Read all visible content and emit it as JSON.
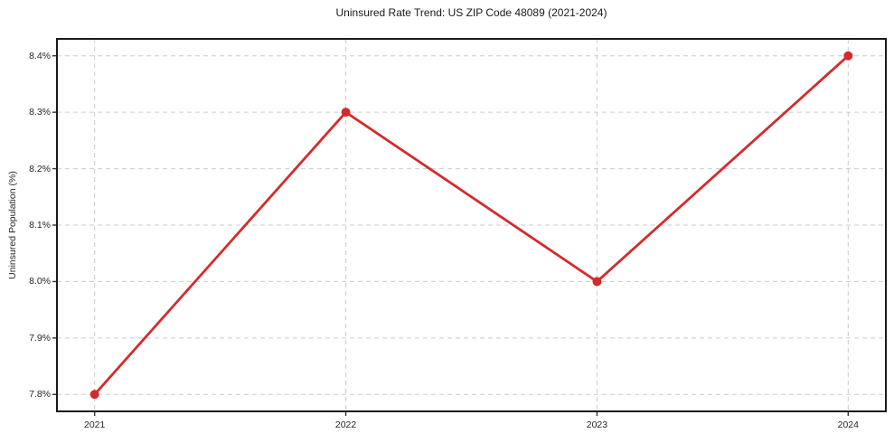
{
  "figure": {
    "background": "#ffffff"
  },
  "chart_data": {
    "type": "line",
    "title": "Uninsured Rate Trend: US ZIP Code 48089 (2021-2024)",
    "xlabel": "",
    "ylabel": "Uninsured Population (%)",
    "x": [
      2021,
      2022,
      2023,
      2024
    ],
    "x_tick_labels": [
      "2021",
      "2022",
      "2023",
      "2024"
    ],
    "series": [
      {
        "name": "uninsured-rate",
        "values": [
          7.8,
          8.3,
          8.0,
          8.4
        ],
        "color": "#d32b2c",
        "marker": "circle",
        "line_width": 2.8,
        "marker_radius": 5
      }
    ],
    "y_ticks": [
      7.8,
      7.9,
      8.0,
      8.1,
      8.2,
      8.3,
      8.4
    ],
    "y_tick_labels": [
      "7.8%",
      "7.9%",
      "8.0%",
      "8.1%",
      "8.2%",
      "8.3%",
      "8.4%"
    ],
    "xlim": [
      2020.85,
      2024.15
    ],
    "ylim": [
      7.77,
      8.43
    ],
    "grid": "dashed",
    "grid_color": "#cccccc",
    "axis_color": "#1a1a1a",
    "tick_color": "#333333",
    "legend": "none"
  }
}
